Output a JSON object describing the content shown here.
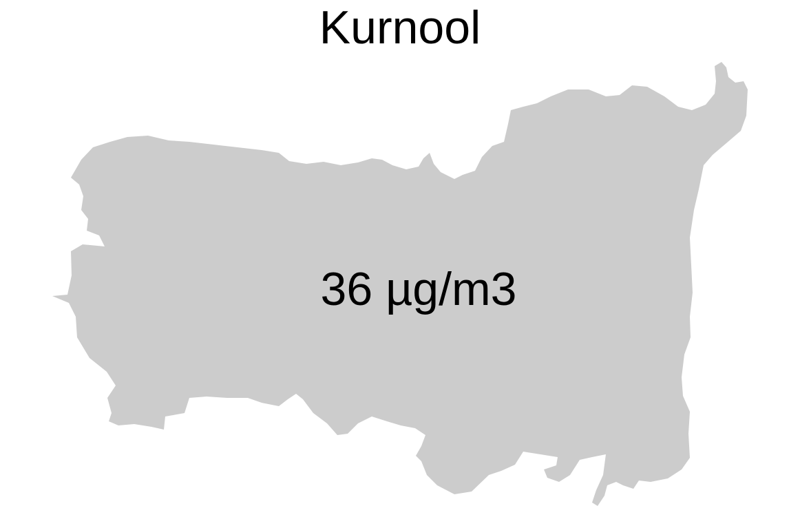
{
  "map": {
    "title": "Kurnool",
    "value_label": "36 µg/m3",
    "region_fill": "#cccccc",
    "background": "#ffffff",
    "text_color": "#000000"
  }
}
